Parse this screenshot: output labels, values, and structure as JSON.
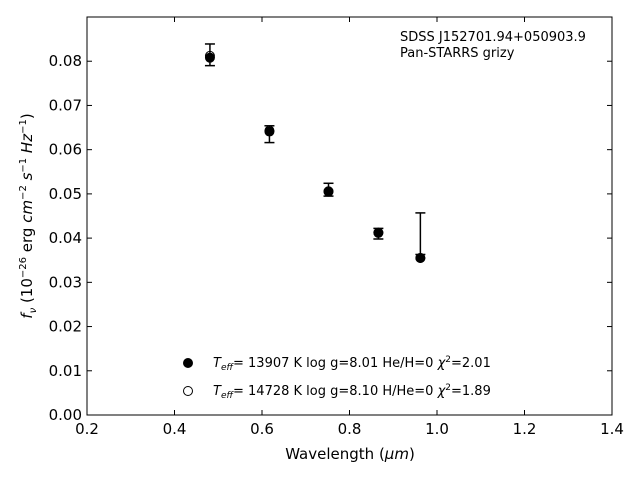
{
  "chart_data": {
    "type": "scatter",
    "xlabel_main": "Wavelength (",
    "xlabel_unit": "μm",
    "xlabel_close": ")",
    "ylabel": {
      "f": "f",
      "nu": "ν",
      "paren_open": " (10",
      "exp1": "−26",
      "erg": " erg ",
      "cm": "cm",
      "exp2": "−2",
      "s": " s",
      "exp3": "−1",
      "hz": " Hz",
      "exp4": "−1",
      "paren_close": ")"
    },
    "xlim": [
      0.2,
      1.4
    ],
    "ylim": [
      0.0,
      0.09
    ],
    "xticks": [
      0.2,
      0.4,
      0.6,
      0.8,
      1.0,
      1.2,
      1.4
    ],
    "xtick_labels": [
      "0.2",
      "0.4",
      "0.6",
      "0.8",
      "1.0",
      "1.2",
      "1.4"
    ],
    "yticks": [
      0.0,
      0.01,
      0.02,
      0.03,
      0.04,
      0.05,
      0.06,
      0.07,
      0.08
    ],
    "ytick_labels": [
      "0.00",
      "0.01",
      "0.02",
      "0.03",
      "0.04",
      "0.05",
      "0.06",
      "0.07",
      "0.08"
    ],
    "annotation": [
      "SDSS J152701.94+050903.9",
      "Pan-STARRS grizy"
    ],
    "observed": {
      "x": [
        0.481,
        0.617,
        0.752,
        0.866,
        0.962
      ],
      "y": [
        0.0813,
        0.0637,
        0.0508,
        0.0409,
        0.0366
      ],
      "err_low": [
        0.0023,
        0.0021,
        0.0013,
        0.0011,
        0.0003
      ],
      "err_high": [
        0.0026,
        0.0017,
        0.0016,
        0.0013,
        0.0091
      ]
    },
    "series": [
      {
        "marker": "filled",
        "teff_T": "T",
        "teff_sub": "eff",
        "rest": "= 13907 K  log g=8.01  He/H=0  ",
        "chi": "χ",
        "chi_sup": "2",
        "chi_val": "=2.01",
        "x": [
          0.481,
          0.617,
          0.752,
          0.866,
          0.962
        ],
        "y": [
          0.0808,
          0.0641,
          0.0505,
          0.0412,
          0.0355
        ]
      },
      {
        "marker": "open",
        "teff_T": "T",
        "teff_sub": "eff",
        "rest": "= 14728 K  log g=8.10  H/He=0  ",
        "chi": "χ",
        "chi_sup": "2",
        "chi_val": "=1.89",
        "x": [
          0.481,
          0.617,
          0.752,
          0.866,
          0.962
        ],
        "y": [
          0.0812,
          0.0643,
          0.0506,
          0.0412,
          0.0355
        ]
      }
    ],
    "grid": false,
    "legend_position": "bottom-center"
  }
}
